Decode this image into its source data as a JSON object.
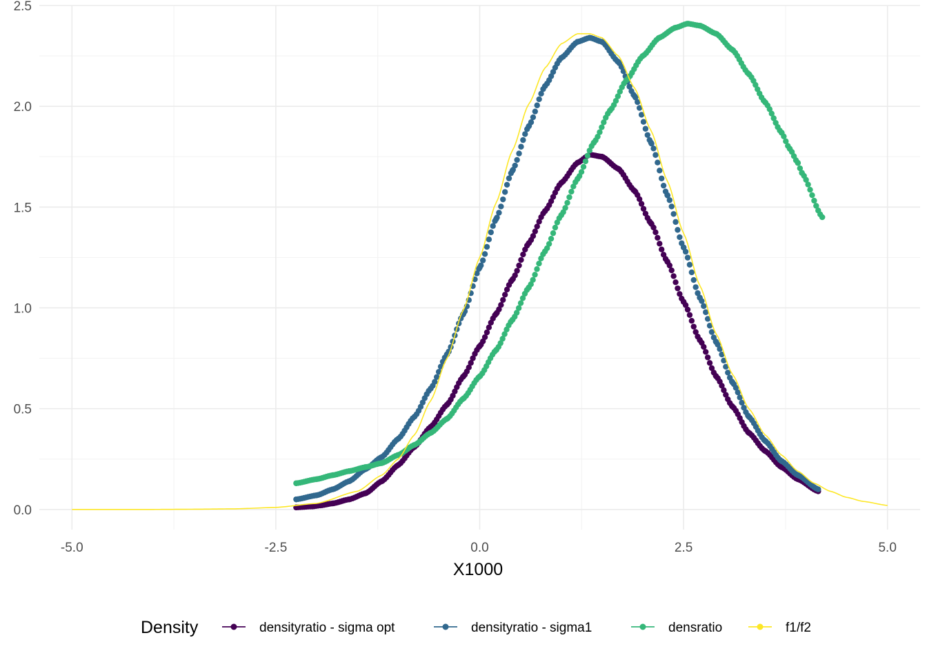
{
  "chart_data": {
    "type": "scatter",
    "title": "",
    "xlabel": "X1000",
    "ylabel": "",
    "xlim": [
      -5.4,
      5.4
    ],
    "ylim": [
      -0.1,
      2.5
    ],
    "x_ticks": [
      {
        "value": -5.0,
        "label": "-5.0"
      },
      {
        "value": -2.5,
        "label": "-2.5"
      },
      {
        "value": 0.0,
        "label": "0.0"
      },
      {
        "value": 2.5,
        "label": "2.5"
      },
      {
        "value": 5.0,
        "label": "5.0"
      }
    ],
    "y_ticks": [
      {
        "value": 0.0,
        "label": "0.0"
      },
      {
        "value": 0.5,
        "label": "0.5"
      },
      {
        "value": 1.0,
        "label": "1.0"
      },
      {
        "value": 1.5,
        "label": "1.5"
      },
      {
        "value": 2.0,
        "label": "2.0"
      },
      {
        "value": 2.5,
        "label": "2.5"
      }
    ],
    "grid": true,
    "legend": {
      "title": "Density",
      "position": "bottom",
      "items": [
        {
          "label": "densityratio - sigma opt",
          "color": "#440154"
        },
        {
          "label": "densityratio - sigma1",
          "color": "#31688E"
        },
        {
          "label": "densratio",
          "color": "#35B779"
        },
        {
          "label": "f1/f2",
          "color": "#FDE725"
        }
      ]
    },
    "series": [
      {
        "name": "densityratio - sigma opt",
        "color": "#440154",
        "mark": "points",
        "points": [
          [
            -2.25,
            0.01
          ],
          [
            -2.05,
            0.015
          ],
          [
            -1.95,
            0.02
          ],
          [
            -1.8,
            0.03
          ],
          [
            -1.6,
            0.05
          ],
          [
            -1.4,
            0.08
          ],
          [
            -1.2,
            0.14
          ],
          [
            -1.0,
            0.22
          ],
          [
            -0.8,
            0.31
          ],
          [
            -0.6,
            0.41
          ],
          [
            -0.4,
            0.52
          ],
          [
            -0.2,
            0.66
          ],
          [
            0.0,
            0.81
          ],
          [
            0.2,
            0.97
          ],
          [
            0.4,
            1.14
          ],
          [
            0.6,
            1.32
          ],
          [
            0.8,
            1.48
          ],
          [
            1.0,
            1.62
          ],
          [
            1.2,
            1.72
          ],
          [
            1.35,
            1.76
          ],
          [
            1.5,
            1.75
          ],
          [
            1.7,
            1.69
          ],
          [
            1.9,
            1.58
          ],
          [
            2.1,
            1.42
          ],
          [
            2.3,
            1.23
          ],
          [
            2.5,
            1.03
          ],
          [
            2.7,
            0.84
          ],
          [
            2.9,
            0.66
          ],
          [
            3.1,
            0.51
          ],
          [
            3.3,
            0.38
          ],
          [
            3.5,
            0.29
          ],
          [
            3.7,
            0.21
          ],
          [
            3.9,
            0.15
          ],
          [
            4.15,
            0.09
          ]
        ]
      },
      {
        "name": "densityratio - sigma1",
        "color": "#31688E",
        "mark": "points",
        "points": [
          [
            -2.25,
            0.05
          ],
          [
            -2.0,
            0.07
          ],
          [
            -1.8,
            0.1
          ],
          [
            -1.6,
            0.14
          ],
          [
            -1.4,
            0.2
          ],
          [
            -1.2,
            0.26
          ],
          [
            -1.0,
            0.35
          ],
          [
            -0.8,
            0.46
          ],
          [
            -0.6,
            0.6
          ],
          [
            -0.4,
            0.77
          ],
          [
            -0.2,
            0.97
          ],
          [
            0.0,
            1.2
          ],
          [
            0.2,
            1.44
          ],
          [
            0.4,
            1.68
          ],
          [
            0.6,
            1.9
          ],
          [
            0.8,
            2.1
          ],
          [
            1.0,
            2.24
          ],
          [
            1.2,
            2.32
          ],
          [
            1.35,
            2.34
          ],
          [
            1.5,
            2.32
          ],
          [
            1.7,
            2.22
          ],
          [
            1.9,
            2.05
          ],
          [
            2.1,
            1.82
          ],
          [
            2.3,
            1.56
          ],
          [
            2.5,
            1.3
          ],
          [
            2.7,
            1.05
          ],
          [
            2.9,
            0.83
          ],
          [
            3.1,
            0.63
          ],
          [
            3.3,
            0.46
          ],
          [
            3.5,
            0.34
          ],
          [
            3.7,
            0.24
          ],
          [
            3.9,
            0.17
          ],
          [
            4.15,
            0.1
          ]
        ]
      },
      {
        "name": "densratio",
        "color": "#35B779",
        "mark": "points",
        "points": [
          [
            -2.25,
            0.13
          ],
          [
            -2.0,
            0.15
          ],
          [
            -1.8,
            0.17
          ],
          [
            -1.6,
            0.19
          ],
          [
            -1.4,
            0.21
          ],
          [
            -1.2,
            0.23
          ],
          [
            -1.0,
            0.27
          ],
          [
            -0.8,
            0.32
          ],
          [
            -0.6,
            0.38
          ],
          [
            -0.4,
            0.45
          ],
          [
            -0.2,
            0.55
          ],
          [
            0.0,
            0.66
          ],
          [
            0.2,
            0.79
          ],
          [
            0.4,
            0.94
          ],
          [
            0.6,
            1.1
          ],
          [
            0.8,
            1.28
          ],
          [
            1.0,
            1.46
          ],
          [
            1.2,
            1.64
          ],
          [
            1.4,
            1.82
          ],
          [
            1.6,
            1.98
          ],
          [
            1.8,
            2.13
          ],
          [
            2.0,
            2.25
          ],
          [
            2.2,
            2.34
          ],
          [
            2.4,
            2.39
          ],
          [
            2.55,
            2.41
          ],
          [
            2.7,
            2.4
          ],
          [
            2.9,
            2.36
          ],
          [
            3.1,
            2.28
          ],
          [
            3.3,
            2.16
          ],
          [
            3.5,
            2.02
          ],
          [
            3.7,
            1.87
          ],
          [
            3.8,
            1.79
          ],
          [
            3.9,
            1.72
          ],
          [
            3.95,
            1.67
          ],
          [
            4.2,
            1.45
          ]
        ]
      },
      {
        "name": "f1/f2",
        "color": "#FDE725",
        "mark": "line",
        "points": [
          [
            -5.0,
            0.0
          ],
          [
            -4.0,
            0.0
          ],
          [
            -3.5,
            0.001
          ],
          [
            -3.0,
            0.003
          ],
          [
            -2.5,
            0.01
          ],
          [
            -2.0,
            0.03
          ],
          [
            -1.5,
            0.09
          ],
          [
            -1.2,
            0.17
          ],
          [
            -1.0,
            0.25
          ],
          [
            -0.8,
            0.37
          ],
          [
            -0.6,
            0.54
          ],
          [
            -0.4,
            0.75
          ],
          [
            -0.2,
            0.99
          ],
          [
            0.0,
            1.25
          ],
          [
            0.2,
            1.52
          ],
          [
            0.4,
            1.78
          ],
          [
            0.6,
            2.01
          ],
          [
            0.8,
            2.19
          ],
          [
            1.0,
            2.31
          ],
          [
            1.2,
            2.36
          ],
          [
            1.35,
            2.36
          ],
          [
            1.5,
            2.34
          ],
          [
            1.7,
            2.25
          ],
          [
            1.9,
            2.09
          ],
          [
            2.1,
            1.88
          ],
          [
            2.3,
            1.63
          ],
          [
            2.5,
            1.37
          ],
          [
            2.7,
            1.11
          ],
          [
            2.9,
            0.87
          ],
          [
            3.1,
            0.67
          ],
          [
            3.3,
            0.5
          ],
          [
            3.5,
            0.37
          ],
          [
            3.7,
            0.27
          ],
          [
            3.9,
            0.19
          ],
          [
            4.1,
            0.13
          ],
          [
            4.3,
            0.09
          ],
          [
            4.5,
            0.06
          ],
          [
            4.7,
            0.04
          ],
          [
            5.0,
            0.02
          ]
        ]
      }
    ]
  }
}
